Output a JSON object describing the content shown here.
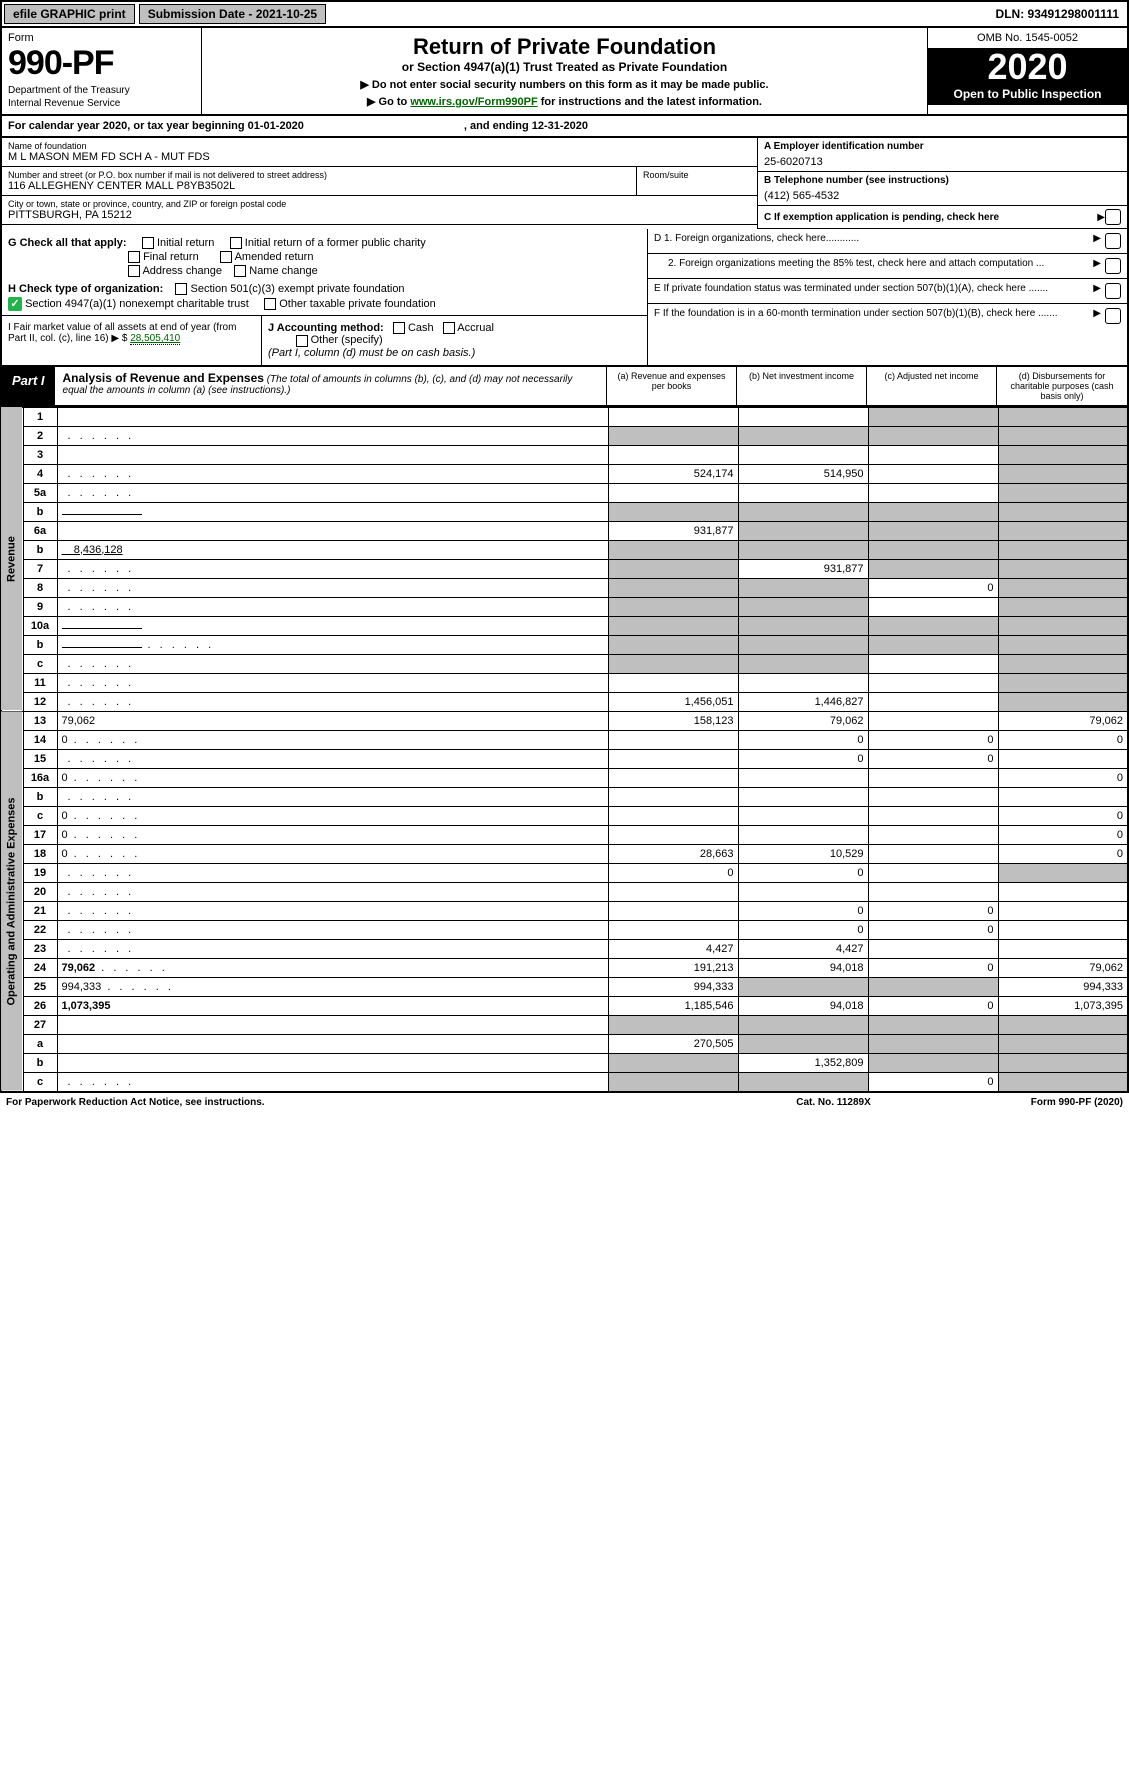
{
  "topbar": {
    "efile": "efile GRAPHIC print",
    "submission": "Submission Date - 2021-10-25",
    "dln": "DLN: 93491298001111"
  },
  "header": {
    "form_label": "Form",
    "form_number": "990-PF",
    "dept1": "Department of the Treasury",
    "dept2": "Internal Revenue Service",
    "title": "Return of Private Foundation",
    "subtitle": "or Section 4947(a)(1) Trust Treated as Private Foundation",
    "instr1": "▶ Do not enter social security numbers on this form as it may be made public.",
    "instr2_pre": "▶ Go to ",
    "instr2_link": "www.irs.gov/Form990PF",
    "instr2_post": " for instructions and the latest information.",
    "omb": "OMB No. 1545-0052",
    "year": "2020",
    "open": "Open to Public Inspection"
  },
  "calendar": {
    "text": "For calendar year 2020, or tax year beginning 01-01-2020",
    "ending": ", and ending 12-31-2020"
  },
  "id": {
    "name_label": "Name of foundation",
    "name": "M L MASON MEM FD SCH A - MUT FDS",
    "addr_label": "Number and street (or P.O. box number if mail is not delivered to street address)",
    "addr": "116 ALLEGHENY CENTER MALL P8YB3502L",
    "room_label": "Room/suite",
    "city_label": "City or town, state or province, country, and ZIP or foreign postal code",
    "city": "PITTSBURGH, PA  15212",
    "ein_label": "A Employer identification number",
    "ein": "25-6020713",
    "tel_label": "B Telephone number (see instructions)",
    "tel": "(412) 565-4532",
    "c_label": "C If exemption application is pending, check here"
  },
  "checks": {
    "g": "G Check all that apply:",
    "g_opts": [
      "Initial return",
      "Initial return of a former public charity",
      "Final return",
      "Amended return",
      "Address change",
      "Name change"
    ],
    "h": "H Check type of organization:",
    "h1": "Section 501(c)(3) exempt private foundation",
    "h2": "Section 4947(a)(1) nonexempt charitable trust",
    "h3": "Other taxable private foundation",
    "i_label": "I Fair market value of all assets at end of year (from Part II, col. (c), line 16) ▶ $",
    "i_val": "28,505,410",
    "j": "J Accounting method:",
    "j_cash": "Cash",
    "j_accrual": "Accrual",
    "j_other": "Other (specify)",
    "j_note": "(Part I, column (d) must be on cash basis.)",
    "d1": "D 1. Foreign organizations, check here............",
    "d2": "2. Foreign organizations meeting the 85% test, check here and attach computation ...",
    "e": "E  If private foundation status was terminated under section 507(b)(1)(A), check here .......",
    "f": "F  If the foundation is in a 60-month termination under section 507(b)(1)(B), check here .......",
    "arrow": "▶"
  },
  "part1": {
    "badge": "Part I",
    "title_bold": "Analysis of Revenue and Expenses",
    "title_rest": " (The total of amounts in columns (b), (c), and (d) may not necessarily equal the amounts in column (a) (see instructions).)",
    "col_a": "(a) Revenue and expenses per books",
    "col_b": "(b) Net investment income",
    "col_c": "(c) Adjusted net income",
    "col_d": "(d) Disbursements for charitable purposes (cash basis only)"
  },
  "sides": {
    "revenue": "Revenue",
    "expenses": "Operating and Administrative Expenses"
  },
  "rows": [
    {
      "n": "1",
      "d": "",
      "a": "",
      "b": "",
      "c": "",
      "sc": "c,d"
    },
    {
      "n": "2",
      "d": "",
      "a": "",
      "b": "",
      "c": "",
      "sc": "a,b,c,d",
      "dots": true
    },
    {
      "n": "3",
      "d": "",
      "a": "",
      "b": "",
      "c": "",
      "sc": "d"
    },
    {
      "n": "4",
      "d": "",
      "a": "524,174",
      "b": "514,950",
      "c": "",
      "sc": "d",
      "dots": true
    },
    {
      "n": "5a",
      "d": "",
      "a": "",
      "b": "",
      "c": "",
      "sc": "d",
      "dots": true
    },
    {
      "n": "b",
      "d": "",
      "a": "",
      "b": "",
      "c": "",
      "sc": "a,b,c,d",
      "inline": true
    },
    {
      "n": "6a",
      "d": "",
      "a": "931,877",
      "b": "",
      "c": "",
      "sc": "b,c,d"
    },
    {
      "n": "b",
      "d": "",
      "inline_val": "8,436,128",
      "a": "",
      "b": "",
      "c": "",
      "sc": "a,b,c,d"
    },
    {
      "n": "7",
      "d": "",
      "a": "",
      "b": "931,877",
      "c": "",
      "sc": "a,c,d",
      "dots": true
    },
    {
      "n": "8",
      "d": "",
      "a": "",
      "b": "",
      "c": "0",
      "sc": "a,b,d",
      "dots": true
    },
    {
      "n": "9",
      "d": "",
      "a": "",
      "b": "",
      "c": "",
      "sc": "a,b,d",
      "dots": true
    },
    {
      "n": "10a",
      "d": "",
      "a": "",
      "b": "",
      "c": "",
      "sc": "a,b,c,d",
      "inline": true
    },
    {
      "n": "b",
      "d": "",
      "a": "",
      "b": "",
      "c": "",
      "sc": "a,b,c,d",
      "inline": true,
      "dots": true
    },
    {
      "n": "c",
      "d": "",
      "a": "",
      "b": "",
      "c": "",
      "sc": "a,b,d",
      "dots": true
    },
    {
      "n": "11",
      "d": "",
      "a": "",
      "b": "",
      "c": "",
      "sc": "d",
      "dots": true
    },
    {
      "n": "12",
      "d": "",
      "a": "1,456,051",
      "b": "1,446,827",
      "c": "",
      "sc": "d",
      "bold": true,
      "dots": true
    }
  ],
  "exp_rows": [
    {
      "n": "13",
      "d": "79,062",
      "a": "158,123",
      "b": "79,062",
      "c": ""
    },
    {
      "n": "14",
      "d": "0",
      "a": "",
      "b": "0",
      "c": "0",
      "dots": true
    },
    {
      "n": "15",
      "d": "",
      "a": "",
      "b": "0",
      "c": "0",
      "dots": true
    },
    {
      "n": "16a",
      "d": "0",
      "a": "",
      "b": "",
      "c": "",
      "dots": true
    },
    {
      "n": "b",
      "d": "",
      "a": "",
      "b": "",
      "c": "",
      "dots": true
    },
    {
      "n": "c",
      "d": "0",
      "a": "",
      "b": "",
      "c": "",
      "dots": true
    },
    {
      "n": "17",
      "d": "0",
      "a": "",
      "b": "",
      "c": "",
      "dots": true
    },
    {
      "n": "18",
      "d": "0",
      "a": "28,663",
      "b": "10,529",
      "c": "",
      "dots": true
    },
    {
      "n": "19",
      "d": "",
      "a": "0",
      "b": "0",
      "c": "",
      "sc": "d",
      "dots": true
    },
    {
      "n": "20",
      "d": "",
      "a": "",
      "b": "",
      "c": "",
      "dots": true
    },
    {
      "n": "21",
      "d": "",
      "a": "",
      "b": "0",
      "c": "0",
      "dots": true
    },
    {
      "n": "22",
      "d": "",
      "a": "",
      "b": "0",
      "c": "0",
      "dots": true
    },
    {
      "n": "23",
      "d": "",
      "a": "4,427",
      "b": "4,427",
      "c": "",
      "dots": true
    },
    {
      "n": "24",
      "d": "79,062",
      "a": "191,213",
      "b": "94,018",
      "c": "0",
      "bold": true,
      "dots": true
    },
    {
      "n": "25",
      "d": "994,333",
      "a": "994,333",
      "b": "",
      "c": "",
      "sc": "b,c",
      "dots": true
    },
    {
      "n": "26",
      "d": "1,073,395",
      "a": "1,185,546",
      "b": "94,018",
      "c": "0",
      "bold": true
    },
    {
      "n": "27",
      "d": "",
      "a": "",
      "b": "",
      "c": "",
      "sc": "a,b,c,d"
    },
    {
      "n": "a",
      "d": "",
      "a": "270,505",
      "b": "",
      "c": "",
      "sc": "b,c,d",
      "bold": true
    },
    {
      "n": "b",
      "d": "",
      "a": "",
      "b": "1,352,809",
      "c": "",
      "sc": "a,c,d",
      "bold": true
    },
    {
      "n": "c",
      "d": "",
      "a": "",
      "b": "",
      "c": "0",
      "sc": "a,b,d",
      "bold": true,
      "dots": true
    }
  ],
  "footer": {
    "left": "For Paperwork Reduction Act Notice, see instructions.",
    "mid": "Cat. No. 11289X",
    "right": "Form 990-PF (2020)"
  },
  "colors": {
    "gray": "#bfbfbf",
    "green": "#24b24c",
    "link": "#006600"
  }
}
